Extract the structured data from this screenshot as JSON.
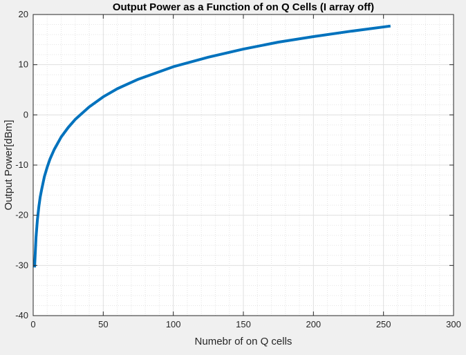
{
  "chart_data": {
    "type": "line",
    "title": "Output Power as a Function of on Q Cells (I array off)",
    "xlabel": "Numebr of on Q cells",
    "ylabel": "Output Power[dBm]",
    "xlim": [
      0,
      300
    ],
    "ylim": [
      -40,
      20
    ],
    "xticks": [
      0,
      50,
      100,
      150,
      200,
      250,
      300
    ],
    "yticks": [
      -40,
      -30,
      -20,
      -10,
      0,
      10,
      20
    ],
    "grid": true,
    "minor_grid": true,
    "legend": "none",
    "series": [
      {
        "color": "#0072BD",
        "x": [
          1,
          2,
          3,
          4,
          5,
          6,
          8,
          10,
          12,
          15,
          20,
          25,
          30,
          40,
          50,
          60,
          75,
          100,
          125,
          150,
          175,
          200,
          225,
          255
        ],
        "y": [
          -30.4,
          -24.4,
          -20.9,
          -18.4,
          -16.4,
          -14.9,
          -12.3,
          -10.4,
          -8.8,
          -6.9,
          -4.4,
          -2.5,
          -0.9,
          1.6,
          3.6,
          5.2,
          7.1,
          9.6,
          11.5,
          13.1,
          14.5,
          15.6,
          16.6,
          17.7
        ]
      }
    ]
  }
}
